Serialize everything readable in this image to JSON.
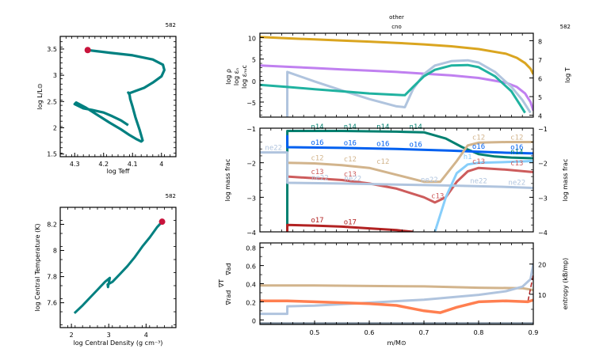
{
  "chart_data": [
    {
      "id": "hr",
      "type": "line",
      "model_number": "582",
      "xlabel": "log Teff",
      "ylabel": "log L/L⊙",
      "xlim": [
        4.35,
        3.95
      ],
      "ylim": [
        1.45,
        3.74
      ],
      "xticks": [
        4.3,
        4.2,
        4.1,
        4.0
      ],
      "xtick_labels": [
        "4.3",
        "4.2",
        "4.1",
        "4"
      ],
      "yticks": [
        1.5,
        2,
        2.5,
        3,
        3.5
      ],
      "ytick_labels": [
        "1.5",
        "2",
        "2.5",
        "3",
        "3.5"
      ],
      "series": [
        {
          "name": "track",
          "color": "#008080",
          "x": [
            4.115,
            4.14,
            4.17,
            4.2,
            4.24,
            4.27,
            4.3,
            4.295,
            4.26,
            4.22,
            4.18,
            4.14,
            4.11,
            4.085,
            4.07,
            4.065,
            4.075,
            4.09,
            4.1,
            4.108,
            4.11,
            4.113,
            4.115,
            4.11,
            4.09,
            4.06,
            4.03,
            4.0,
            3.99,
            3.995,
            4.03,
            4.1,
            4.18,
            4.225,
            4.255
          ],
          "y": [
            2.05,
            2.14,
            2.22,
            2.29,
            2.34,
            2.37,
            2.45,
            2.48,
            2.38,
            2.24,
            2.1,
            1.97,
            1.86,
            1.78,
            1.74,
            1.76,
            1.95,
            2.2,
            2.4,
            2.55,
            2.62,
            2.66,
            2.67,
            2.66,
            2.7,
            2.76,
            2.86,
            2.98,
            3.1,
            3.2,
            3.3,
            3.38,
            3.43,
            3.46,
            3.48
          ]
        }
      ],
      "current_point": {
        "x": 4.255,
        "y": 3.48,
        "color": "#c8143c"
      }
    },
    {
      "id": "central",
      "type": "line",
      "model_number": "582",
      "xlabel": "log Central Density (g cm⁻³)",
      "ylabel": "log Central Temperature (K)",
      "xlim": [
        1.7,
        4.8
      ],
      "ylim": [
        7.41,
        8.33
      ],
      "xticks": [
        2,
        3,
        4
      ],
      "xtick_labels": [
        "2",
        "3",
        "4"
      ],
      "yticks": [
        7.6,
        7.8,
        8.0,
        8.2
      ],
      "ytick_labels": [
        "7.6",
        "7.8",
        "8",
        "8.2"
      ],
      "series": [
        {
          "name": "track",
          "color": "#008080",
          "x": [
            2.08,
            2.3,
            2.5,
            2.7,
            2.9,
            3.03,
            2.98,
            2.97,
            3.1,
            3.3,
            3.5,
            3.7,
            3.9,
            4.1,
            4.3,
            4.43
          ],
          "y": [
            7.52,
            7.58,
            7.64,
            7.7,
            7.76,
            7.79,
            7.72,
            7.74,
            7.76,
            7.82,
            7.88,
            7.95,
            8.03,
            8.1,
            8.18,
            8.22
          ]
        }
      ],
      "current_point": {
        "x": 4.43,
        "y": 8.22,
        "color": "#c8143c"
      }
    },
    {
      "id": "profile-top",
      "type": "line",
      "title_lines": [
        "other",
        "cno"
      ],
      "model_number": "582",
      "xlim": [
        0.4,
        0.9
      ],
      "ylim_left": [
        -8.5,
        11
      ],
      "ylim_right": [
        3.9,
        8.4
      ],
      "yticks_left": [
        -5,
        0,
        5,
        10
      ],
      "ytick_labels_left": [
        "−5",
        "0",
        "5",
        "10"
      ],
      "yticks_right": [
        4,
        5,
        6,
        7,
        8
      ],
      "ytick_labels_right": [
        "4",
        "5",
        "6",
        "7",
        "8"
      ],
      "ylabels_left": [
        {
          "text": "log ρ",
          "color": "#c080f0"
        },
        {
          "text": "log εₙ",
          "color": "#20b2a0"
        },
        {
          "text": "log εₙᵤc",
          "color": "#b0c4de"
        }
      ],
      "ylabel_right": {
        "text": "log T",
        "color": "#daa520"
      },
      "series": [
        {
          "name": "logT",
          "axis": "right",
          "color": "#daa520",
          "x": [
            0.4,
            0.45,
            0.5,
            0.55,
            0.6,
            0.65,
            0.7,
            0.75,
            0.8,
            0.85,
            0.87,
            0.885,
            0.895,
            0.9
          ],
          "y": [
            8.2,
            8.13,
            8.07,
            8.01,
            7.95,
            7.88,
            7.8,
            7.7,
            7.55,
            7.3,
            7.08,
            6.8,
            6.5,
            6.2
          ]
        },
        {
          "name": "log rho",
          "axis": "left",
          "color": "#c080f0",
          "x": [
            0.4,
            0.45,
            0.5,
            0.55,
            0.6,
            0.65,
            0.7,
            0.75,
            0.8,
            0.85,
            0.87,
            0.885,
            0.895,
            0.9
          ],
          "y": [
            3.5,
            3.2,
            2.9,
            2.6,
            2.3,
            2.0,
            1.6,
            1.2,
            0.6,
            -0.5,
            -1.5,
            -3,
            -5,
            -7
          ]
        },
        {
          "name": "log eps_nuc",
          "axis": "left",
          "color": "#b0c4de",
          "x": [
            0.45,
            0.4501,
            0.5,
            0.55,
            0.6,
            0.65,
            0.665,
            0.68,
            0.7,
            0.72,
            0.75,
            0.78,
            0.8,
            0.83,
            0.86,
            0.88,
            0.895
          ],
          "y": [
            -8.5,
            2.0,
            -0.2,
            -2.3,
            -4.3,
            -6.0,
            -6.2,
            -2.0,
            1.5,
            3.5,
            4.5,
            4.7,
            4.2,
            2.0,
            -1.5,
            -4.5,
            -7.5
          ]
        },
        {
          "name": "log eps_h",
          "axis": "left",
          "color": "#20b2a0",
          "x": [
            0.4,
            0.45,
            0.5,
            0.55,
            0.6,
            0.665,
            0.68,
            0.7,
            0.72,
            0.75,
            0.78,
            0.8,
            0.83,
            0.86,
            0.875,
            0.885
          ],
          "y": [
            -1.0,
            -1.5,
            -2.0,
            -2.5,
            -3.0,
            -3.4,
            -1.5,
            1.0,
            2.5,
            3.5,
            3.6,
            3.1,
            1.0,
            -2.5,
            -5.5,
            -7.5
          ]
        }
      ]
    },
    {
      "id": "profile-abundances",
      "type": "line",
      "xlim": [
        0.4,
        0.9
      ],
      "ylim": [
        -4,
        -1
      ],
      "yticks": [
        -4,
        -3,
        -2,
        -1
      ],
      "ytick_labels": [
        "−4",
        "−3",
        "−2",
        "−1"
      ],
      "ylabel": "log mass frac",
      "series": [
        {
          "name": "n14",
          "color": "#008070",
          "x": [
            0.45,
            0.4501,
            0.55,
            0.65,
            0.7,
            0.74,
            0.77,
            0.8,
            0.83,
            0.86,
            0.9
          ],
          "y": [
            -4,
            -1.08,
            -1.08,
            -1.1,
            -1.12,
            -1.3,
            -1.55,
            -1.75,
            -1.82,
            -1.85,
            -1.87
          ]
        },
        {
          "name": "o16",
          "color": "#0060f0",
          "x": [
            0.45,
            0.4501,
            0.55,
            0.65,
            0.75,
            0.8,
            0.85,
            0.9
          ],
          "y": [
            -1.2,
            -1.55,
            -1.57,
            -1.6,
            -1.65,
            -1.68,
            -1.71,
            -1.73
          ]
        },
        {
          "name": "c12",
          "color": "#d2b48c",
          "x": [
            0.45,
            0.5,
            0.55,
            0.6,
            0.65,
            0.7,
            0.73,
            0.76,
            0.78,
            0.8,
            0.85,
            0.9
          ],
          "y": [
            -2.0,
            -2.02,
            -2.07,
            -2.15,
            -2.35,
            -2.55,
            -2.55,
            -1.95,
            -1.5,
            -1.42,
            -1.4,
            -1.4
          ]
        },
        {
          "name": "c13",
          "color": "#cd5c5c",
          "x": [
            0.45,
            0.5,
            0.55,
            0.6,
            0.65,
            0.7,
            0.72,
            0.74,
            0.76,
            0.78,
            0.8,
            0.85,
            0.9
          ],
          "y": [
            -2.4,
            -2.45,
            -2.5,
            -2.6,
            -2.75,
            -3.0,
            -3.15,
            -3.0,
            -2.55,
            -2.25,
            -2.15,
            -2.2,
            -2.27
          ]
        },
        {
          "name": "ne22",
          "color": "#b0c4de",
          "x": [
            0.4,
            0.45,
            0.4501,
            0.55,
            0.65,
            0.75,
            0.85,
            0.9
          ],
          "y": [
            -1.7,
            -1.7,
            -2.58,
            -2.6,
            -2.63,
            -2.66,
            -2.7,
            -2.73
          ]
        },
        {
          "name": "h1",
          "color": "#87cefa",
          "x": [
            0.72,
            0.74,
            0.76,
            0.78,
            0.8,
            0.85,
            0.9
          ],
          "y": [
            -4,
            -3.0,
            -2.3,
            -2.05,
            -2.0,
            -1.98,
            -1.95
          ]
        },
        {
          "name": "o17",
          "color": "#b22222",
          "x": [
            0.45,
            0.4501,
            0.5,
            0.55,
            0.6,
            0.65,
            0.68
          ],
          "y": [
            -4,
            -3.8,
            -3.82,
            -3.85,
            -3.9,
            -3.95,
            -4
          ]
        }
      ],
      "line_labels": [
        {
          "text": "n14",
          "x": 0.505,
          "y": -1.05,
          "color": "#008070"
        },
        {
          "text": "n14",
          "x": 0.565,
          "y": -1.05,
          "color": "#008070"
        },
        {
          "text": "n14",
          "x": 0.625,
          "y": -1.05,
          "color": "#008070"
        },
        {
          "text": "n14",
          "x": 0.685,
          "y": -1.05,
          "color": "#008070"
        },
        {
          "text": "o16",
          "x": 0.505,
          "y": -1.5,
          "color": "#0060f0"
        },
        {
          "text": "o16",
          "x": 0.565,
          "y": -1.52,
          "color": "#0060f0"
        },
        {
          "text": "o16",
          "x": 0.625,
          "y": -1.54,
          "color": "#0060f0"
        },
        {
          "text": "o16",
          "x": 0.685,
          "y": -1.56,
          "color": "#0060f0"
        },
        {
          "text": "o16",
          "x": 0.8,
          "y": -1.62,
          "color": "#0060f0"
        },
        {
          "text": "o16",
          "x": 0.87,
          "y": -1.64,
          "color": "#0060f0"
        },
        {
          "text": "c12",
          "x": 0.505,
          "y": -1.95,
          "color": "#d2b48c"
        },
        {
          "text": "c12",
          "x": 0.565,
          "y": -1.98,
          "color": "#d2b48c"
        },
        {
          "text": "c12",
          "x": 0.625,
          "y": -2.05,
          "color": "#d2b48c"
        },
        {
          "text": "c12",
          "x": 0.8,
          "y": -1.35,
          "color": "#d2b48c"
        },
        {
          "text": "c12",
          "x": 0.87,
          "y": -1.35,
          "color": "#d2b48c"
        },
        {
          "text": "c13",
          "x": 0.505,
          "y": -2.35,
          "color": "#cd5c5c"
        },
        {
          "text": "c13",
          "x": 0.565,
          "y": -2.42,
          "color": "#cd5c5c"
        },
        {
          "text": "c13",
          "x": 0.725,
          "y": -3.05,
          "color": "#cd5c5c"
        },
        {
          "text": "c13",
          "x": 0.8,
          "y": -2.05,
          "color": "#cd5c5c"
        },
        {
          "text": "c13",
          "x": 0.87,
          "y": -2.1,
          "color": "#cd5c5c"
        },
        {
          "text": "ne22",
          "x": 0.425,
          "y": -1.65,
          "color": "#b0c4de"
        },
        {
          "text": "ne22",
          "x": 0.51,
          "y": -2.52,
          "color": "#b0c4de"
        },
        {
          "text": "ne22",
          "x": 0.57,
          "y": -2.55,
          "color": "#b0c4de"
        },
        {
          "text": "ne22",
          "x": 0.71,
          "y": -2.58,
          "color": "#b0c4de"
        },
        {
          "text": "ne22",
          "x": 0.8,
          "y": -2.62,
          "color": "#b0c4de"
        },
        {
          "text": "ne22",
          "x": 0.87,
          "y": -2.66,
          "color": "#b0c4de"
        },
        {
          "text": "h1",
          "x": 0.78,
          "y": -1.92,
          "color": "#87cefa"
        },
        {
          "text": "n14",
          "x": 0.87,
          "y": -1.78,
          "color": "#008070"
        },
        {
          "text": "o17",
          "x": 0.505,
          "y": -3.75,
          "color": "#b22222"
        },
        {
          "text": "o17",
          "x": 0.565,
          "y": -3.8,
          "color": "#b22222"
        }
      ]
    },
    {
      "id": "profile-gradients",
      "type": "line",
      "xlabel": "m/M⊙",
      "xlim": [
        0.4,
        0.9
      ],
      "xticks": [
        0.5,
        0.6,
        0.7,
        0.8,
        0.9
      ],
      "xtick_labels": [
        "0.5",
        "0.6",
        "0.7",
        "0.8",
        "0.9"
      ],
      "ylim_left": [
        -0.05,
        0.85
      ],
      "yticks_left": [
        0,
        0.2,
        0.4,
        0.6,
        0.8
      ],
      "ytick_labels_left": [
        "0",
        "0.2",
        "0.4",
        "0.6",
        "0.8"
      ],
      "ylim_right": [
        0,
        27
      ],
      "yticks_right": [
        10,
        20
      ],
      "ytick_labels_right": [
        "10",
        "20"
      ],
      "ylabels_left": [
        {
          "text": "∇ad",
          "color": "#d2b48c"
        },
        {
          "text": "∇T",
          "color": "#b22222"
        },
        {
          "text": "∇rad",
          "color": "#ff7f50"
        }
      ],
      "ylabel_right": {
        "text": "entropy (kB/mp)",
        "color": "#000000"
      },
      "series": [
        {
          "name": "grad_ad",
          "axis": "left",
          "color": "#d2b48c",
          "x": [
            0.4,
            0.5,
            0.6,
            0.7,
            0.8,
            0.88,
            0.9
          ],
          "y": [
            0.38,
            0.38,
            0.375,
            0.37,
            0.355,
            0.35,
            0.33
          ]
        },
        {
          "name": "entropy",
          "axis": "right",
          "color": "#b0c4de",
          "x": [
            0.4,
            0.45,
            0.4501,
            0.5,
            0.6,
            0.7,
            0.8,
            0.85,
            0.88,
            0.895,
            0.9
          ],
          "y": [
            3.5,
            3.5,
            6,
            6.2,
            7.2,
            8.2,
            9.8,
            11,
            12.5,
            15,
            20
          ]
        },
        {
          "name": "grad_T",
          "axis": "left",
          "color": "#b22222",
          "x": [
            0.4,
            0.45,
            0.5,
            0.6,
            0.65,
            0.7,
            0.73,
            0.76,
            0.8,
            0.85,
            0.89,
            0.9
          ],
          "y": [
            0.22,
            0.21,
            0.2,
            0.18,
            0.16,
            0.1,
            0.08,
            0.14,
            0.2,
            0.21,
            0.2,
            0.5
          ]
        },
        {
          "name": "grad_rad",
          "axis": "left",
          "color": "#ff7f50",
          "x": [
            0.4,
            0.45,
            0.5,
            0.6,
            0.65,
            0.7,
            0.73,
            0.76,
            0.8,
            0.85,
            0.89,
            0.9
          ],
          "y": [
            0.21,
            0.21,
            0.2,
            0.18,
            0.16,
            0.1,
            0.08,
            0.14,
            0.2,
            0.21,
            0.2,
            0.22
          ]
        },
        {
          "name": "base",
          "axis": "left",
          "color": "#708090",
          "x": [
            0.4,
            0.9
          ],
          "y": [
            -0.04,
            -0.04
          ]
        }
      ]
    }
  ]
}
